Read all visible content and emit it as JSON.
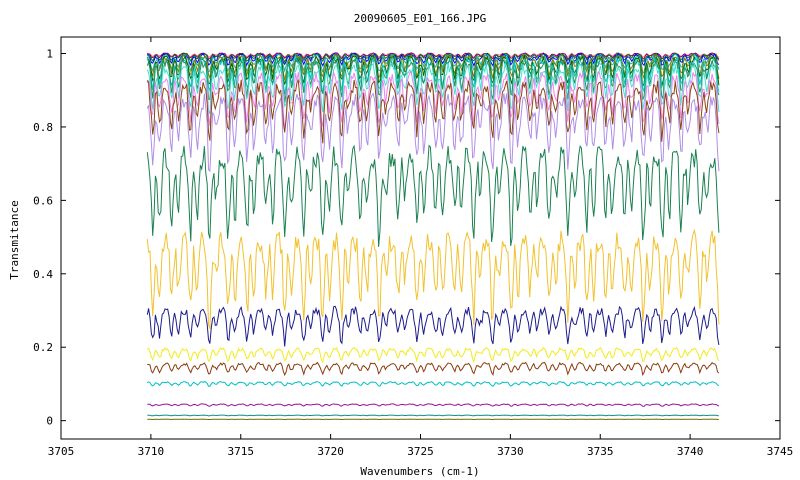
{
  "chart_data": {
    "type": "line",
    "title": "20090605_E01_166.JPG",
    "xlabel": "Wavenumbers (cm-1)",
    "ylabel": "Transmitance",
    "xlim": [
      3705,
      3745
    ],
    "ylim": [
      -0.05,
      1.045
    ],
    "x_ticks": [
      "3705",
      "3710",
      "3715",
      "3720",
      "3725",
      "3730",
      "3735",
      "3740",
      "3745"
    ],
    "y_ticks": [
      "0",
      "0.2",
      "0.4",
      "0.6",
      "0.8",
      "1"
    ],
    "x_range": [
      3709.8,
      3741.6
    ],
    "line_period_cm": 1.05,
    "grid": false,
    "legend": "none",
    "series": [
      {
        "color": "#ff8080",
        "level": 1.0,
        "depth": 0.01
      },
      {
        "color": "#800080",
        "level": 1.0,
        "depth": 0.015
      },
      {
        "color": "#008000",
        "level": 0.998,
        "depth": 0.02
      },
      {
        "color": "#0000ff",
        "level": 0.996,
        "depth": 0.03
      },
      {
        "color": "#20b2aa",
        "level": 0.993,
        "depth": 0.045
      },
      {
        "color": "#808000",
        "level": 0.99,
        "depth": 0.06
      },
      {
        "color": "#006400",
        "level": 0.985,
        "depth": 0.075
      },
      {
        "color": "#00ced1",
        "level": 0.98,
        "depth": 0.09
      },
      {
        "color": "#2e8b57",
        "level": 0.975,
        "depth": 0.105
      },
      {
        "color": "#40e0d0",
        "level": 0.96,
        "depth": 0.12
      },
      {
        "color": "#ee82ee",
        "level": 0.935,
        "depth": 0.135
      },
      {
        "color": "#8b4513",
        "level": 0.91,
        "depth": 0.15
      },
      {
        "color": "#b08ee8",
        "level": 0.87,
        "depth": 0.19
      },
      {
        "color": "#1a8050",
        "level": 0.72,
        "depth": 0.25
      },
      {
        "color": "#f2c12e",
        "level": 0.49,
        "depth": 0.23
      },
      {
        "color": "#1c1c8c",
        "level": 0.3,
        "depth": 0.095
      },
      {
        "color": "#f0ec1e",
        "level": 0.195,
        "depth": 0.035
      },
      {
        "color": "#8b3a0e",
        "level": 0.155,
        "depth": 0.03
      },
      {
        "color": "#00c0c0",
        "level": 0.105,
        "depth": 0.012
      },
      {
        "color": "#9b0f9b",
        "level": 0.045,
        "depth": 0.006
      },
      {
        "color": "#108a8a",
        "level": 0.015,
        "depth": 0.002
      },
      {
        "color": "#6b6b00",
        "level": 0.004,
        "depth": 0.001
      }
    ]
  }
}
